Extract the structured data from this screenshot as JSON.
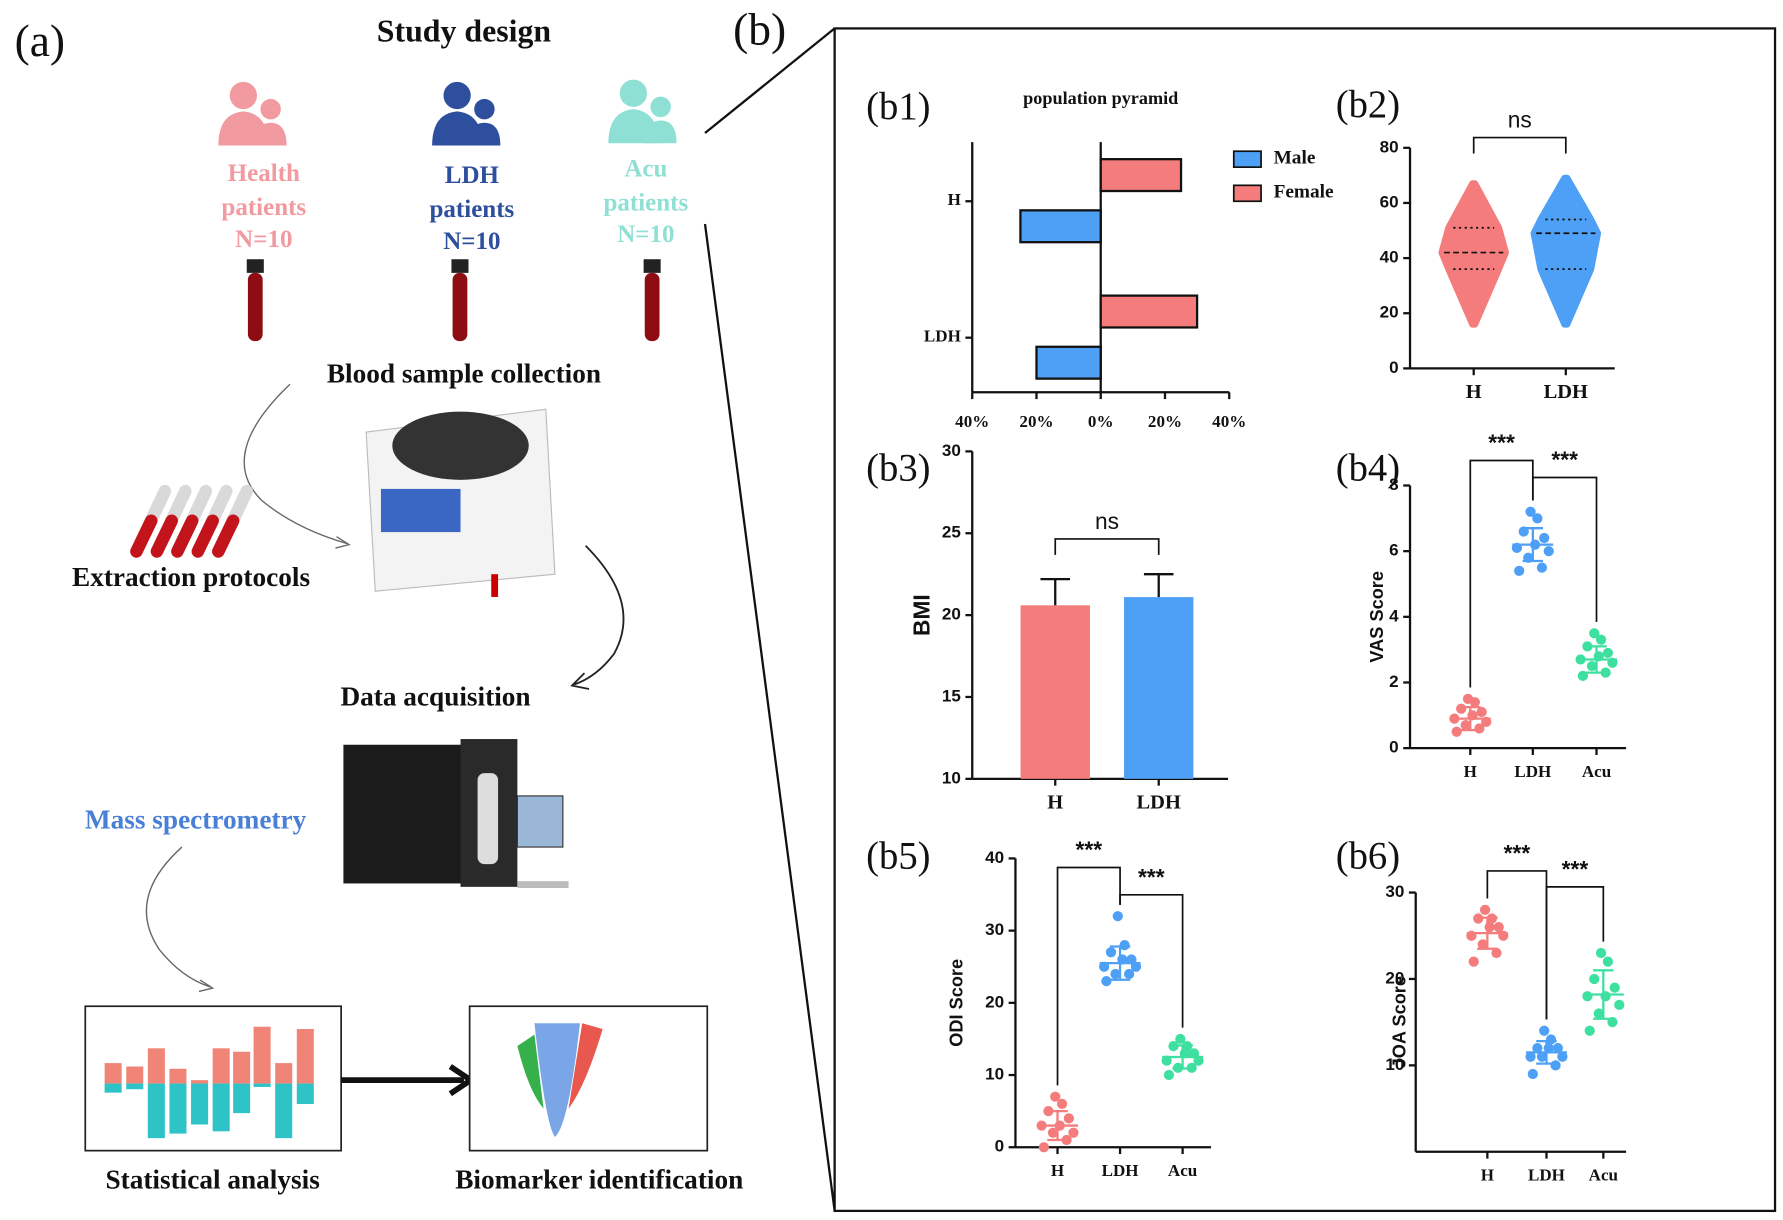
{
  "panel_a": {
    "label": "(a)",
    "title": "Study design",
    "groups": [
      {
        "lines": [
          "Health",
          "patients",
          "N=10"
        ],
        "color": "#f19aa0"
      },
      {
        "lines": [
          "LDH",
          "patients",
          "N=10"
        ],
        "color": "#2d4f9e"
      },
      {
        "lines": [
          "Acu",
          "patients",
          "N=10"
        ],
        "color": "#8fe0d4"
      }
    ],
    "steps": [
      "Blood sample collection",
      "Extraction protocols",
      "Data acquisition",
      "Mass spectrometry",
      "Statistical analysis",
      "Biomarker identification"
    ]
  },
  "panel_b": {
    "label": "(b)"
  },
  "chart_data": [
    {
      "type": "pyramid",
      "label": "(b1)",
      "title": "population pyramid",
      "categories": [
        "H",
        "LDH"
      ],
      "series": [
        {
          "name": "Male",
          "color": "#4da0f5",
          "values": [
            -25,
            -20
          ]
        },
        {
          "name": "Female",
          "color": "#f47c7c",
          "values": [
            25,
            30
          ]
        }
      ],
      "xlim": [
        -40,
        40
      ],
      "xticks": [
        {
          "value": -40,
          "label": "40%"
        },
        {
          "value": -20,
          "label": "20%"
        },
        {
          "value": 0,
          "label": "0%"
        },
        {
          "value": 20,
          "label": "20%"
        },
        {
          "value": 40,
          "label": "40%"
        }
      ]
    },
    {
      "type": "violin",
      "label": "(b2)",
      "categories": [
        "H",
        "LDH"
      ],
      "colors": [
        "#f47c7c",
        "#4da0f5"
      ],
      "min": [
        16,
        16
      ],
      "q1": [
        36,
        36
      ],
      "median": [
        42,
        49
      ],
      "q3": [
        51,
        54
      ],
      "max": [
        67,
        69
      ],
      "ylim": [
        0,
        80
      ],
      "yticks": [
        0,
        20,
        40,
        60,
        80
      ],
      "annotations": [
        "ns"
      ]
    },
    {
      "type": "bar",
      "label": "(b3)",
      "ylabel": "BMI",
      "categories": [
        "H",
        "LDH"
      ],
      "colors": [
        "#f47c7c",
        "#4da0f5"
      ],
      "values": [
        20.6,
        21.1
      ],
      "errors": [
        1.6,
        1.4
      ],
      "ylim": [
        10,
        30
      ],
      "yticks": [
        10,
        15,
        20,
        25,
        30
      ],
      "annotations": [
        "ns"
      ]
    },
    {
      "type": "dot",
      "label": "(b4)",
      "ylabel": "VAS Score",
      "categories": [
        "H",
        "LDH",
        "Acu"
      ],
      "colors": [
        "#f47c7c",
        "#4da0f5",
        "#3ee0a0"
      ],
      "points": [
        [
          0.5,
          0.6,
          0.7,
          0.8,
          0.9,
          1.0,
          1.1,
          1.2,
          1.4,
          1.5
        ],
        [
          5.4,
          5.5,
          5.8,
          6.0,
          6.1,
          6.2,
          6.4,
          6.6,
          7.0,
          7.2
        ],
        [
          2.2,
          2.3,
          2.5,
          2.6,
          2.7,
          2.8,
          2.9,
          3.1,
          3.3,
          3.5
        ]
      ],
      "mean": [
        0.9,
        6.2,
        2.7
      ],
      "sd": [
        0.35,
        0.5,
        0.4
      ],
      "ylim": [
        0,
        8
      ],
      "yticks": [
        0,
        2,
        4,
        6,
        8
      ],
      "annotations": [
        "***",
        "***"
      ]
    },
    {
      "type": "dot",
      "label": "(b5)",
      "ylabel": "ODI Score",
      "categories": [
        "H",
        "LDH",
        "Acu"
      ],
      "colors": [
        "#f47c7c",
        "#4da0f5",
        "#3ee0a0"
      ],
      "points": [
        [
          0,
          1,
          2,
          2,
          3,
          3,
          4,
          5,
          6,
          7
        ],
        [
          23,
          24,
          24,
          25,
          25,
          26,
          26,
          27,
          28,
          32
        ],
        [
          10,
          11,
          11,
          12,
          12,
          13,
          13,
          14,
          14,
          15
        ]
      ],
      "mean": [
        3,
        25.5,
        12.5
      ],
      "sd": [
        2,
        2.3,
        1.6
      ],
      "ylim": [
        0,
        40
      ],
      "yticks": [
        0,
        10,
        20,
        30,
        40
      ],
      "annotations": [
        "***",
        "***"
      ]
    },
    {
      "type": "dot",
      "label": "(b6)",
      "ylabel": "JOA Score",
      "categories": [
        "H",
        "LDH",
        "Acu"
      ],
      "colors": [
        "#f47c7c",
        "#4da0f5",
        "#3ee0a0"
      ],
      "points": [
        [
          22,
          23,
          24,
          25,
          25,
          26,
          26,
          27,
          27,
          28
        ],
        [
          9,
          10,
          11,
          11,
          11,
          12,
          12,
          12,
          13,
          14
        ],
        [
          14,
          15,
          16,
          17,
          18,
          18,
          19,
          20,
          22,
          23
        ]
      ],
      "mean": [
        25.3,
        11.5,
        18.2
      ],
      "sd": [
        1.8,
        1.3,
        2.8
      ],
      "ylim": [
        0,
        30
      ],
      "yticks": [
        10,
        20,
        30
      ],
      "annotations": [
        "***",
        "***"
      ]
    }
  ]
}
